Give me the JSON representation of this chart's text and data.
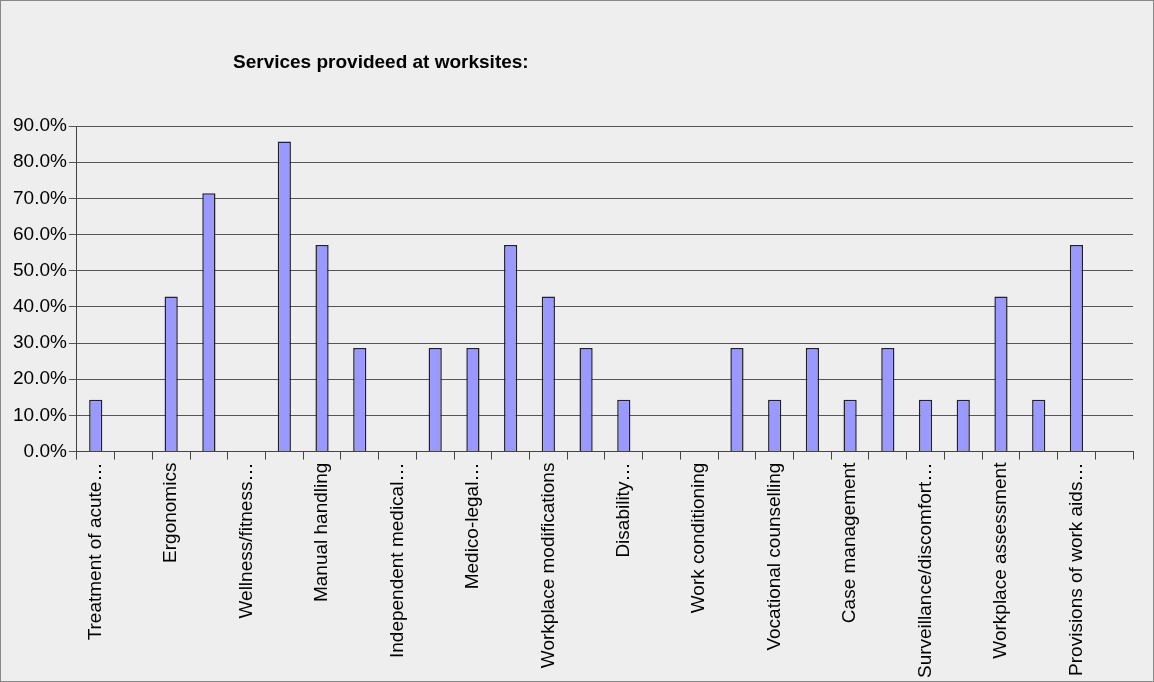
{
  "chart_data": {
    "type": "bar",
    "title": "Services provideed at worksites:",
    "categories": [
      "Treatment of acute…",
      null,
      "Ergonomics",
      null,
      "Wellness/fitness…",
      null,
      "Manual handling",
      null,
      "Independent medical…",
      null,
      "Medico-legal…",
      null,
      "Workplace modifications",
      null,
      "Disability…",
      null,
      "Work conditioning",
      null,
      "Vocational counselling",
      null,
      "Case management",
      null,
      "Surveillance/discomfort…",
      null,
      "Workplace assessment",
      null,
      "Provisions of work aids…",
      null
    ],
    "values": [
      14.3,
      0,
      42.9,
      71.4,
      0,
      85.7,
      57.1,
      28.6,
      0,
      28.6,
      28.6,
      57.1,
      42.9,
      28.6,
      14.3,
      0,
      0,
      28.6,
      14.3,
      28.6,
      14.3,
      28.6,
      14.3,
      14.3,
      42.9,
      14.3,
      57.1,
      0
    ],
    "color": "#9999ff",
    "ylim": [
      0,
      90
    ],
    "yticks": [
      {
        "value": 0,
        "label": "0.0%"
      },
      {
        "value": 10,
        "label": "10.0%"
      },
      {
        "value": 20,
        "label": "20.0%"
      },
      {
        "value": 30,
        "label": "30.0%"
      },
      {
        "value": 40,
        "label": "40.0%"
      },
      {
        "value": 50,
        "label": "50.0%"
      },
      {
        "value": 60,
        "label": "60.0%"
      },
      {
        "value": 70,
        "label": "70.0%"
      },
      {
        "value": 80,
        "label": "80.0%"
      },
      {
        "value": 90,
        "label": "90.0%"
      }
    ],
    "grid": "y"
  }
}
